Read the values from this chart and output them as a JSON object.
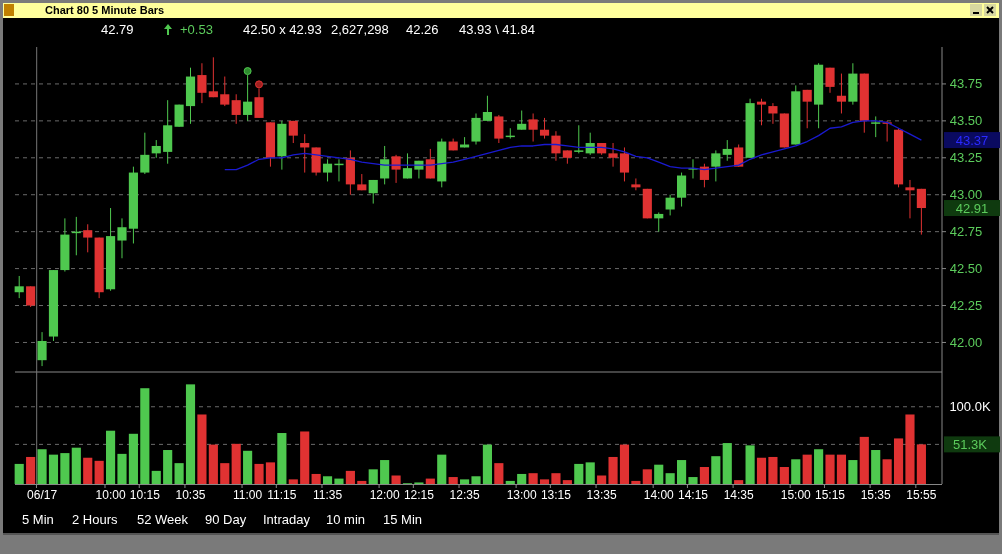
{
  "chart_data": [
    {
      "type": "candlestick",
      "title": "Chart 80 5 Minute Bars",
      "annotations": [
        "42.79",
        "+0.53",
        "42.50 x 42.93",
        "2,627,298",
        "42.26",
        "43.93 \\ 41.84",
        "43.37",
        "42.91"
      ],
      "ohlc": [
        [
          42.34,
          42.45,
          42.3,
          42.38
        ],
        [
          42.38,
          42.38,
          42.24,
          42.25
        ],
        [
          41.88,
          42.07,
          41.84,
          42.01
        ],
        [
          42.04,
          42.49,
          42.01,
          42.49
        ],
        [
          42.49,
          42.84,
          42.48,
          42.73
        ],
        [
          42.74,
          42.85,
          42.59,
          42.75
        ],
        [
          42.76,
          42.8,
          42.61,
          42.71
        ],
        [
          42.71,
          42.71,
          42.3,
          42.34
        ],
        [
          42.36,
          42.91,
          42.35,
          42.72
        ],
        [
          42.69,
          42.84,
          42.57,
          42.78
        ],
        [
          42.77,
          43.19,
          42.67,
          43.15
        ],
        [
          43.15,
          43.42,
          43.14,
          43.27
        ],
        [
          43.28,
          43.37,
          43.25,
          43.33
        ],
        [
          43.29,
          43.64,
          43.21,
          43.47
        ],
        [
          43.46,
          43.61,
          43.46,
          43.61
        ],
        [
          43.6,
          43.86,
          43.48,
          43.8
        ],
        [
          43.81,
          43.89,
          43.62,
          43.69
        ],
        [
          43.7,
          43.93,
          43.66,
          43.66
        ],
        [
          43.68,
          43.8,
          43.6,
          43.61
        ],
        [
          43.64,
          43.68,
          43.48,
          43.54
        ],
        [
          43.54,
          43.81,
          43.5,
          43.63
        ],
        [
          43.66,
          43.72,
          43.52,
          43.52
        ],
        [
          43.49,
          43.49,
          43.19,
          43.25
        ],
        [
          43.26,
          43.5,
          43.17,
          43.48
        ],
        [
          43.5,
          43.5,
          43.35,
          43.4
        ],
        [
          43.35,
          43.41,
          43.15,
          43.32
        ],
        [
          43.32,
          43.32,
          43.13,
          43.15
        ],
        [
          43.15,
          43.24,
          43.09,
          43.21
        ],
        [
          43.2,
          43.24,
          43.09,
          43.21
        ],
        [
          43.25,
          43.3,
          43.0,
          43.07
        ],
        [
          43.07,
          43.14,
          43.03,
          43.03
        ],
        [
          43.01,
          43.1,
          42.94,
          43.1
        ],
        [
          43.11,
          43.33,
          43.07,
          43.24
        ],
        [
          43.26,
          43.27,
          43.08,
          43.17
        ],
        [
          43.11,
          43.28,
          43.11,
          43.18
        ],
        [
          43.17,
          43.23,
          43.11,
          43.23
        ],
        [
          43.24,
          43.31,
          43.11,
          43.11
        ],
        [
          43.09,
          43.38,
          43.05,
          43.36
        ],
        [
          43.36,
          43.38,
          43.3,
          43.3
        ],
        [
          43.32,
          43.39,
          43.32,
          43.34
        ],
        [
          43.36,
          43.55,
          43.34,
          43.52
        ],
        [
          43.5,
          43.67,
          43.5,
          43.56
        ],
        [
          43.53,
          43.54,
          43.35,
          43.38
        ],
        [
          43.39,
          43.45,
          43.38,
          43.4
        ],
        [
          43.44,
          43.57,
          43.44,
          43.48
        ],
        [
          43.51,
          43.55,
          43.36,
          43.44
        ],
        [
          43.44,
          43.52,
          43.38,
          43.4
        ],
        [
          43.4,
          43.43,
          43.23,
          43.28
        ],
        [
          43.3,
          43.3,
          43.21,
          43.25
        ],
        [
          43.29,
          43.47,
          43.28,
          43.3
        ],
        [
          43.28,
          43.42,
          43.27,
          43.35
        ],
        [
          43.35,
          43.35,
          43.27,
          43.28
        ],
        [
          43.28,
          43.35,
          43.19,
          43.25
        ],
        [
          43.28,
          43.32,
          43.09,
          43.15
        ],
        [
          43.07,
          43.11,
          43.03,
          43.05
        ],
        [
          43.04,
          43.04,
          42.84,
          42.84
        ],
        [
          42.84,
          42.88,
          42.75,
          42.87
        ],
        [
          42.9,
          43.0,
          42.86,
          42.98
        ],
        [
          42.98,
          43.15,
          42.92,
          43.13
        ],
        [
          43.17,
          43.24,
          43.11,
          43.18
        ],
        [
          43.19,
          43.21,
          43.05,
          43.1
        ],
        [
          43.19,
          43.3,
          43.09,
          43.28
        ],
        [
          43.27,
          43.37,
          43.23,
          43.31
        ],
        [
          43.32,
          43.34,
          43.19,
          43.19
        ],
        [
          43.25,
          43.65,
          43.25,
          43.62
        ],
        [
          43.63,
          43.65,
          43.47,
          43.61
        ],
        [
          43.6,
          43.62,
          43.48,
          43.55
        ],
        [
          43.55,
          43.55,
          43.32,
          43.32
        ],
        [
          43.34,
          43.74,
          43.34,
          43.7
        ],
        [
          43.71,
          43.71,
          43.45,
          43.63
        ],
        [
          43.61,
          43.89,
          43.45,
          43.88
        ],
        [
          43.86,
          43.86,
          43.69,
          43.73
        ],
        [
          43.67,
          43.82,
          43.55,
          43.63
        ],
        [
          43.63,
          43.89,
          43.61,
          43.82
        ],
        [
          43.82,
          43.82,
          43.42,
          43.5
        ],
        [
          43.48,
          43.53,
          43.39,
          43.49
        ],
        [
          43.49,
          43.5,
          43.36,
          43.48
        ],
        [
          43.44,
          43.45,
          43.05,
          43.07
        ],
        [
          43.05,
          43.1,
          42.84,
          43.03
        ],
        [
          43.04,
          43.04,
          42.73,
          42.91
        ]
      ],
      "colors": [
        "#4fc84f",
        "#e03232",
        "#4fc84f",
        "#4fc84f",
        "#4fc84f",
        "#4fc84f",
        "#e03232",
        "#e03232",
        "#4fc84f",
        "#4fc84f",
        "#4fc84f",
        "#4fc84f",
        "#4fc84f",
        "#4fc84f",
        "#4fc84f",
        "#4fc84f",
        "#e03232",
        "#e03232",
        "#e03232",
        "#e03232",
        "#4fc84f",
        "#e03232",
        "#e03232",
        "#4fc84f",
        "#e03232",
        "#e03232",
        "#e03232",
        "#4fc84f",
        "#4fc84f",
        "#e03232",
        "#e03232",
        "#4fc84f",
        "#4fc84f",
        "#e03232",
        "#4fc84f",
        "#4fc84f",
        "#e03232",
        "#4fc84f",
        "#e03232",
        "#4fc84f",
        "#4fc84f",
        "#4fc84f",
        "#e03232",
        "#4fc84f",
        "#4fc84f",
        "#e03232",
        "#e03232",
        "#e03232",
        "#e03232",
        "#4fc84f",
        "#4fc84f",
        "#e03232",
        "#e03232",
        "#e03232",
        "#e03232",
        "#e03232",
        "#4fc84f",
        "#4fc84f",
        "#4fc84f",
        "#4fc84f",
        "#e03232",
        "#4fc84f",
        "#4fc84f",
        "#e03232",
        "#4fc84f",
        "#e03232",
        "#e03232",
        "#e03232",
        "#4fc84f",
        "#e03232",
        "#4fc84f",
        "#e03232",
        "#e03232",
        "#4fc84f",
        "#e03232",
        "#4fc84f",
        "#e03232",
        "#e03232",
        "#e03232",
        "#e03232"
      ],
      "series": [
        {
          "type": "line",
          "color": "#1a1ad0",
          "values": [
            null,
            null,
            null,
            null,
            null,
            null,
            null,
            null,
            null,
            null,
            null,
            null,
            null,
            null,
            null,
            null,
            null,
            null,
            43.17,
            43.17,
            43.2,
            43.24,
            43.25,
            43.25,
            43.27,
            43.28,
            43.27,
            43.26,
            43.25,
            43.24,
            43.22,
            43.21,
            43.2,
            43.2,
            43.2,
            43.2,
            43.2,
            43.21,
            43.22,
            43.24,
            43.26,
            43.28,
            43.3,
            43.32,
            43.33,
            43.33,
            43.34,
            43.34,
            43.33,
            43.32,
            43.32,
            43.32,
            43.31,
            43.29,
            43.26,
            43.25,
            43.22,
            43.19,
            43.18,
            43.18,
            43.17,
            43.18,
            43.19,
            43.2,
            43.24,
            43.27,
            43.29,
            43.31,
            43.33,
            43.36,
            43.4,
            43.45,
            43.46,
            43.49,
            43.5,
            43.5,
            43.49,
            43.45,
            43.41,
            43.37
          ]
        }
      ],
      "ylim": [
        41.8,
        44.0
      ],
      "yticks": [
        {
          "value": 42,
          "label": "42.00"
        },
        42.25,
        {
          "value": 42.5,
          "label": "42.50"
        },
        42.75,
        {
          "value": 43,
          "label": "43.00"
        },
        43.25,
        {
          "value": 43.5,
          "label": "43.50"
        },
        43.75
      ],
      "grid": "y",
      "tick_labels": "y"
    },
    {
      "type": "bar",
      "categories": [
        null,
        null,
        "06/17",
        null,
        null,
        null,
        null,
        null,
        "10:00",
        null,
        null,
        "10:15",
        null,
        null,
        null,
        "10:35",
        null,
        null,
        null,
        null,
        "11:00",
        null,
        null,
        "11:15",
        null,
        null,
        null,
        "11:35",
        null,
        null,
        null,
        null,
        "12:00",
        null,
        null,
        "12:15",
        null,
        null,
        null,
        "12:35",
        null,
        null,
        null,
        null,
        "13:00",
        null,
        null,
        "13:15",
        null,
        null,
        null,
        "13:35",
        null,
        null,
        null,
        null,
        "14:00",
        null,
        null,
        "14:15",
        null,
        null,
        null,
        "14:35",
        null,
        null,
        null,
        null,
        "15:00",
        null,
        null,
        "15:15",
        null,
        null,
        null,
        "15:35",
        null,
        null,
        null,
        "15:55"
      ],
      "values": [
        26,
        35,
        45,
        38,
        40,
        47,
        34,
        30,
        69,
        39,
        65,
        124,
        17,
        44,
        27,
        129,
        90,
        51,
        27,
        52,
        43,
        26,
        28,
        66,
        6,
        68,
        13,
        10,
        7,
        17,
        4,
        19,
        31,
        11,
        1,
        2,
        7,
        38,
        9,
        6,
        10,
        51,
        27,
        4,
        13,
        14,
        6,
        14,
        5,
        26,
        28,
        11,
        35,
        51,
        4,
        19,
        25,
        14,
        31,
        9,
        22,
        36,
        53,
        5,
        50,
        34,
        35,
        22,
        32,
        38,
        45,
        38,
        38,
        31,
        61,
        44,
        32,
        59,
        90,
        51.3
      ],
      "colors": [
        "#4fc84f",
        "#e03232",
        "#4fc84f",
        "#4fc84f",
        "#4fc84f",
        "#4fc84f",
        "#e03232",
        "#e03232",
        "#4fc84f",
        "#4fc84f",
        "#4fc84f",
        "#4fc84f",
        "#4fc84f",
        "#4fc84f",
        "#4fc84f",
        "#4fc84f",
        "#e03232",
        "#e03232",
        "#e03232",
        "#e03232",
        "#4fc84f",
        "#e03232",
        "#e03232",
        "#4fc84f",
        "#e03232",
        "#e03232",
        "#e03232",
        "#4fc84f",
        "#4fc84f",
        "#e03232",
        "#e03232",
        "#4fc84f",
        "#4fc84f",
        "#e03232",
        "#4fc84f",
        "#4fc84f",
        "#e03232",
        "#4fc84f",
        "#e03232",
        "#4fc84f",
        "#4fc84f",
        "#4fc84f",
        "#e03232",
        "#4fc84f",
        "#4fc84f",
        "#e03232",
        "#e03232",
        "#e03232",
        "#e03232",
        "#4fc84f",
        "#4fc84f",
        "#e03232",
        "#e03232",
        "#e03232",
        "#e03232",
        "#e03232",
        "#4fc84f",
        "#4fc84f",
        "#4fc84f",
        "#4fc84f",
        "#e03232",
        "#4fc84f",
        "#4fc84f",
        "#e03232",
        "#4fc84f",
        "#e03232",
        "#e03232",
        "#e03232",
        "#4fc84f",
        "#e03232",
        "#4fc84f",
        "#e03232",
        "#e03232",
        "#4fc84f",
        "#e03232",
        "#4fc84f",
        "#e03232",
        "#e03232",
        "#e03232",
        "#e03232"
      ],
      "ylim": [
        0,
        145
      ],
      "yticks": [
        {
          "value": 51.3,
          "label": "51.3K"
        },
        {
          "value": 100,
          "label": "100.0K"
        }
      ],
      "grid": "y",
      "annotations": [
        "5 Min",
        "2 Hours",
        "52 Week",
        "90 Day",
        "Intraday",
        "10 min",
        "15 Min"
      ]
    }
  ]
}
